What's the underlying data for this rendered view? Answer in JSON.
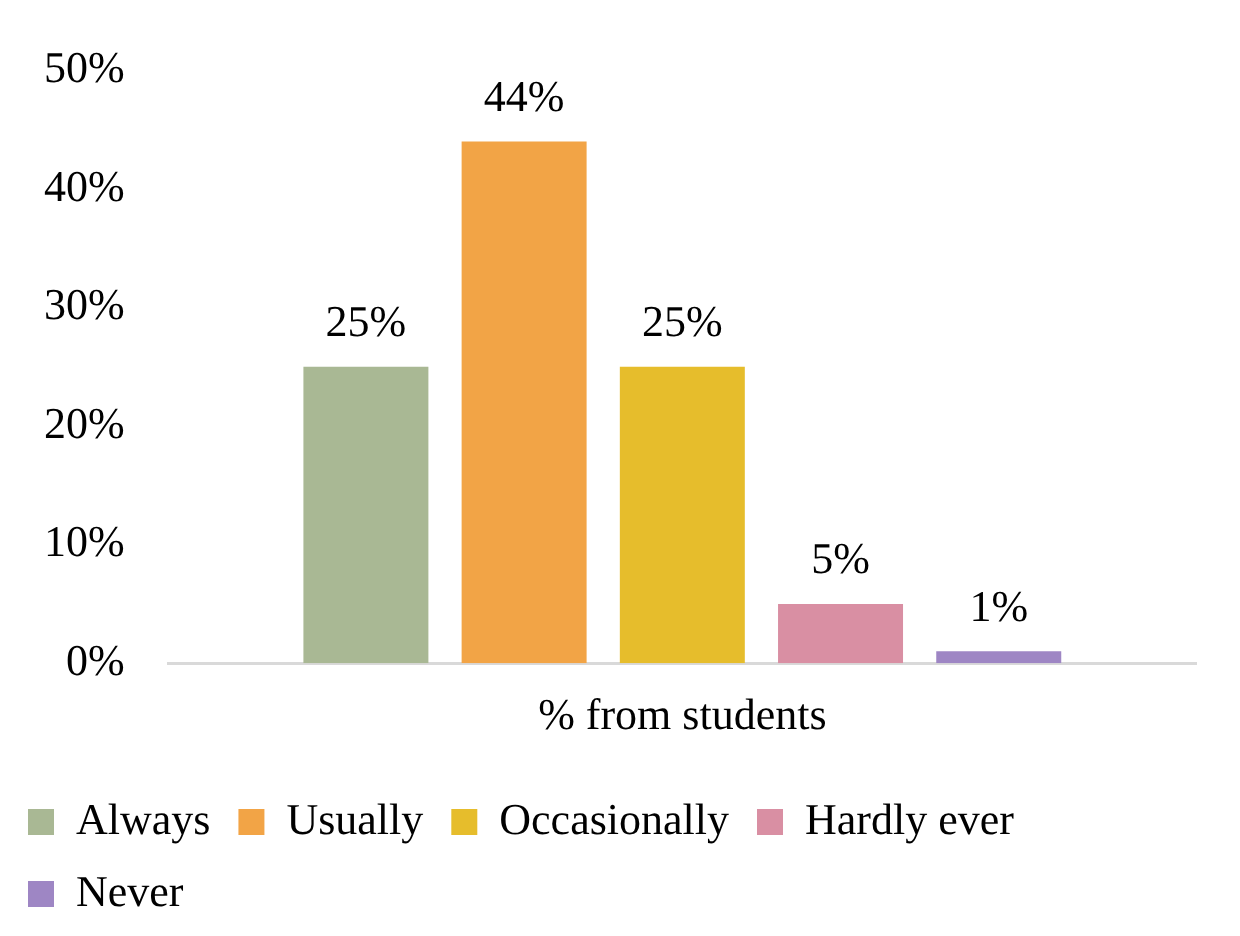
{
  "chart_data": {
    "type": "bar",
    "categories": [
      "% from students"
    ],
    "series": [
      {
        "name": "Always",
        "color": "#a9b894",
        "values": [
          25
        ],
        "value_labels": [
          "25%"
        ]
      },
      {
        "name": "Usually",
        "color": "#f2a446",
        "values": [
          44
        ],
        "value_labels": [
          "44%"
        ]
      },
      {
        "name": "Occasionally",
        "color": "#e6bd2c",
        "values": [
          25
        ],
        "value_labels": [
          "25%"
        ]
      },
      {
        "name": "Hardly ever",
        "color": "#d98fa3",
        "values": [
          5
        ],
        "value_labels": [
          "5%"
        ]
      },
      {
        "name": "Never",
        "color": "#9e86c4",
        "values": [
          1
        ],
        "value_labels": [
          "1%"
        ]
      }
    ],
    "ylim": [
      0,
      50
    ],
    "yticks": [
      {
        "value": 0,
        "label": "0%"
      },
      {
        "value": 10,
        "label": "10%"
      },
      {
        "value": 20,
        "label": "20%"
      },
      {
        "value": 30,
        "label": "30%"
      },
      {
        "value": 40,
        "label": "40%"
      },
      {
        "value": 50,
        "label": "50%"
      }
    ],
    "grid": false,
    "legend": "bottom"
  }
}
